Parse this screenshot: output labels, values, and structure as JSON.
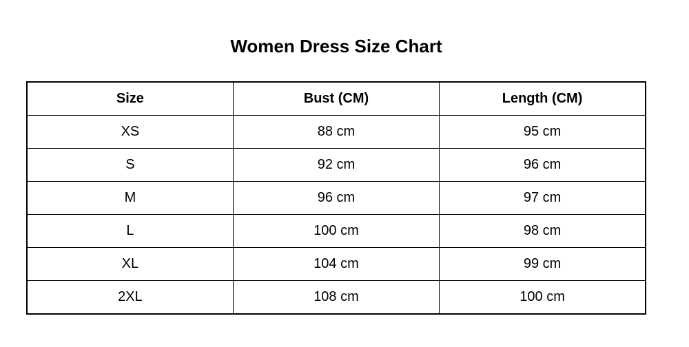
{
  "page": {
    "title": "Women Dress Size Chart"
  },
  "table": {
    "columns": [
      "Size",
      "Bust (CM)",
      "Length (CM)"
    ],
    "rows": [
      [
        "XS",
        "88 cm",
        "95 cm"
      ],
      [
        "S",
        "92 cm",
        "96 cm"
      ],
      [
        "M",
        "96 cm",
        "97 cm"
      ],
      [
        "L",
        "100 cm",
        "98 cm"
      ],
      [
        "XL",
        "104 cm",
        "99 cm"
      ],
      [
        "2XL",
        "108 cm",
        "100 cm"
      ]
    ]
  },
  "colors": {
    "background": "#ffffff",
    "border": "#000000",
    "text": "#000000"
  },
  "chart_data": {
    "type": "table",
    "title": "Women Dress Size Chart",
    "columns": [
      "Size",
      "Bust (CM)",
      "Length (CM)"
    ],
    "rows": [
      {
        "size": "XS",
        "bust_cm": 88,
        "length_cm": 95
      },
      {
        "size": "S",
        "bust_cm": 92,
        "length_cm": 96
      },
      {
        "size": "M",
        "bust_cm": 96,
        "length_cm": 97
      },
      {
        "size": "L",
        "bust_cm": 100,
        "length_cm": 98
      },
      {
        "size": "XL",
        "bust_cm": 104,
        "length_cm": 99
      },
      {
        "size": "2XL",
        "bust_cm": 108,
        "length_cm": 100
      }
    ]
  }
}
